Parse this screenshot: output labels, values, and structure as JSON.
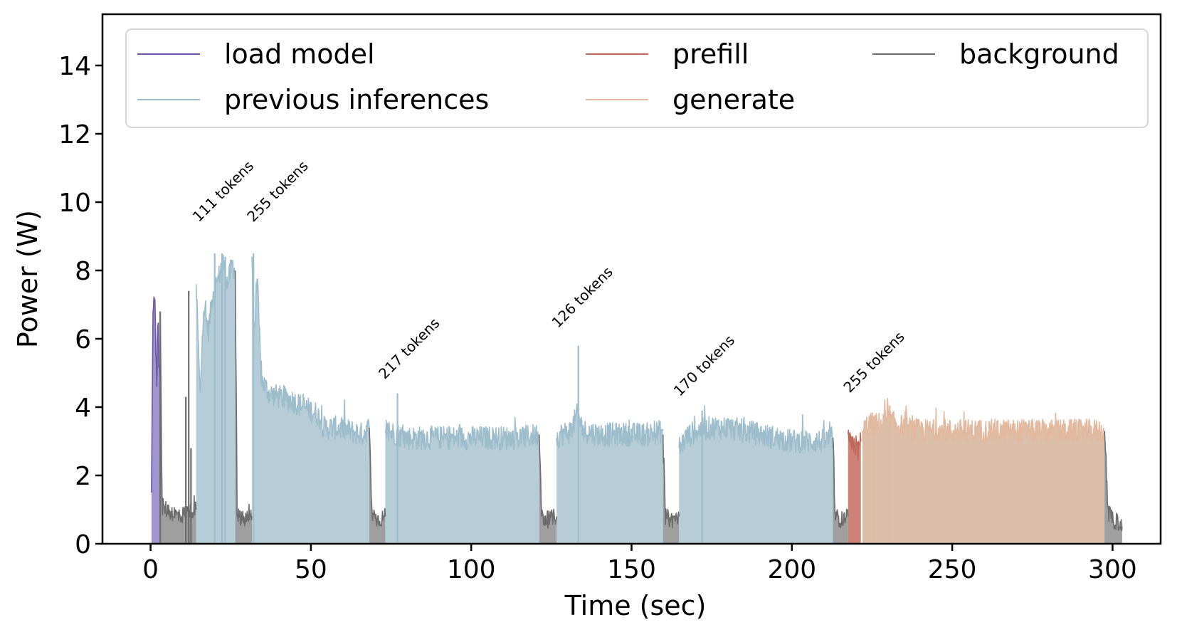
{
  "chart_data": {
    "type": "area",
    "xlabel": "Time (sec)",
    "ylabel": "Power (W)",
    "xlim": [
      -15,
      315
    ],
    "ylim": [
      0,
      15.5
    ],
    "xticks": [
      0,
      50,
      100,
      150,
      200,
      250,
      300
    ],
    "yticks": [
      0,
      2,
      4,
      6,
      8,
      10,
      12,
      14
    ],
    "grid": false,
    "legend_position": "top",
    "series": [
      {
        "name": "load model",
        "color": "#6a55a8",
        "fill": "#9c8fcc",
        "segments": [
          [
            [
              0.3,
              1.5
            ],
            [
              0.8,
              7.2
            ],
            [
              1.4,
              6.9
            ],
            [
              1.9,
              4.6
            ],
            [
              2.3,
              6.8
            ],
            [
              2.6,
              4.9
            ],
            [
              3.0,
              5.3
            ]
          ]
        ]
      },
      {
        "name": "previous inferences",
        "color": "#9ebdcc",
        "fill": "#b2cad6",
        "segments": [
          [
            [
              14.2,
              7.6
            ],
            [
              15.5,
              4.2
            ],
            [
              16.5,
              7.0
            ],
            [
              18,
              6.2
            ],
            [
              19.5,
              7.4
            ],
            [
              21,
              7.7
            ],
            [
              22.5,
              8.3
            ],
            [
              24,
              7.6
            ],
            [
              25.5,
              8.2
            ],
            [
              26.4,
              8.0
            ]
          ],
          [
            [
              31.6,
              8.4
            ],
            [
              32.3,
              6.0
            ],
            [
              33.2,
              7.9
            ],
            [
              34.5,
              4.8
            ],
            [
              37,
              4.4
            ],
            [
              40,
              4.3
            ],
            [
              44,
              4.2
            ],
            [
              48,
              4.0
            ],
            [
              52,
              3.8
            ],
            [
              54,
              3.4
            ],
            [
              58,
              3.4
            ],
            [
              62,
              3.3
            ],
            [
              66,
              3.2
            ],
            [
              68.2,
              3.4
            ]
          ],
          [
            [
              73.2,
              3.3
            ],
            [
              77,
              3.2
            ],
            [
              80,
              3.1
            ],
            [
              85,
              3.1
            ],
            [
              90,
              3.1
            ],
            [
              95,
              3.1
            ],
            [
              100,
              3.1
            ],
            [
              105,
              3.1
            ],
            [
              110,
              3.1
            ],
            [
              115,
              3.1
            ],
            [
              121.2,
              3.2
            ]
          ],
          [
            [
              126.6,
              3.1
            ],
            [
              128,
              3.2
            ],
            [
              131,
              3.3
            ],
            [
              133.2,
              3.8
            ],
            [
              135,
              3.3
            ],
            [
              140,
              3.2
            ],
            [
              145,
              3.2
            ],
            [
              150,
              3.2
            ],
            [
              155,
              3.2
            ],
            [
              159.8,
              3.3
            ]
          ],
          [
            [
              164.8,
              2.8
            ],
            [
              167,
              3.1
            ],
            [
              170,
              3.3
            ],
            [
              175,
              3.4
            ],
            [
              180,
              3.4
            ],
            [
              185,
              3.3
            ],
            [
              190,
              3.2
            ],
            [
              195,
              3.1
            ],
            [
              200,
              3.0
            ],
            [
              205,
              3.0
            ],
            [
              210,
              3.0
            ],
            [
              212.8,
              3.1
            ]
          ]
        ],
        "spikes": [
          [
            20,
            8.5
          ],
          [
            22.3,
            8.5
          ],
          [
            23.3,
            8.4
          ],
          [
            32.1,
            8.5
          ],
          [
            77,
            4.4
          ],
          [
            133.4,
            5.8
          ],
          [
            172,
            3.9
          ]
        ]
      },
      {
        "name": "prefill",
        "color": "#c0695a",
        "fill": "#c97b6e",
        "segments": [
          [
            [
              217.5,
              3.2
            ],
            [
              218.5,
              2.8
            ],
            [
              219.5,
              3.0
            ],
            [
              220.5,
              2.7
            ],
            [
              221.5,
              3.0
            ]
          ]
        ]
      },
      {
        "name": "generate",
        "color": "#e2b99f",
        "fill": "#d9bca6",
        "segments": [
          [
            [
              222,
              3.3
            ],
            [
              224,
              3.5
            ],
            [
              228,
              3.5
            ],
            [
              230,
              3.6
            ],
            [
              235,
              3.4
            ],
            [
              240,
              3.3
            ],
            [
              250,
              3.3
            ],
            [
              260,
              3.3
            ],
            [
              270,
              3.3
            ],
            [
              280,
              3.3
            ],
            [
              290,
              3.3
            ],
            [
              297.5,
              3.3
            ]
          ]
        ],
        "spikes": [
          [
            230.5,
            4.05
          ],
          [
            225.5,
            3.7
          ]
        ]
      },
      {
        "name": "background",
        "color": "#6d6d6d",
        "fill": "#9a9a9a",
        "segments": [
          [
            [
              3.0,
              6.8
            ],
            [
              3.6,
              1.1
            ],
            [
              5,
              1.0
            ],
            [
              7,
              0.9
            ],
            [
              9,
              0.8
            ],
            [
              11,
              0.9
            ],
            [
              12.5,
              1.0
            ],
            [
              14.2,
              1.0
            ]
          ],
          [
            [
              26.4,
              8.0
            ],
            [
              27,
              0.8
            ],
            [
              29,
              0.7
            ],
            [
              31.6,
              0.8
            ]
          ],
          [
            [
              68.2,
              3.4
            ],
            [
              69,
              0.9
            ],
            [
              71,
              0.7
            ],
            [
              73.2,
              0.8
            ]
          ],
          [
            [
              121.2,
              3.2
            ],
            [
              122,
              0.8
            ],
            [
              124,
              0.7
            ],
            [
              126.6,
              0.8
            ]
          ],
          [
            [
              159.8,
              3.2
            ],
            [
              160.5,
              0.8
            ],
            [
              162.5,
              0.7
            ],
            [
              164.8,
              0.8
            ]
          ],
          [
            [
              212.8,
              3.1
            ],
            [
              213.5,
              0.8
            ],
            [
              215.5,
              0.7
            ],
            [
              217.5,
              0.8
            ]
          ],
          [
            [
              297.5,
              3.3
            ],
            [
              298.5,
              0.9
            ],
            [
              300,
              0.7
            ],
            [
              302,
              0.6
            ],
            [
              303,
              0.5
            ]
          ]
        ],
        "spikes": [
          [
            3.0,
            6.8
          ],
          [
            11.0,
            4.3
          ],
          [
            11.9,
            7.4
          ],
          [
            12.6,
            2.8
          ]
        ]
      }
    ],
    "annotations": [
      {
        "text": "111 tokens",
        "x": 15,
        "y": 9.4
      },
      {
        "text": "255 tokens",
        "x": 32,
        "y": 9.4
      },
      {
        "text": "217 tokens",
        "x": 73,
        "y": 4.8
      },
      {
        "text": "126 tokens",
        "x": 127,
        "y": 6.3
      },
      {
        "text": "170 tokens",
        "x": 165,
        "y": 4.3
      },
      {
        "text": "255 tokens",
        "x": 218,
        "y": 4.4
      }
    ]
  }
}
